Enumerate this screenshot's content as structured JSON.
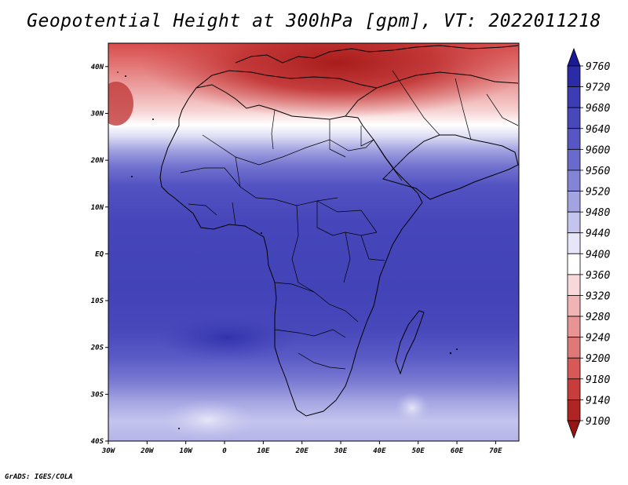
{
  "title": "Geopotential Height at 300hPa [gpm], VT: 2022011218",
  "credit": "GrADS: IGES/COLA",
  "map": {
    "lon_range": [
      -30,
      76
    ],
    "lat_range": [
      -40,
      45
    ],
    "lon_ticks": [
      {
        "value": -30,
        "label": "30W"
      },
      {
        "value": -20,
        "label": "20W"
      },
      {
        "value": -10,
        "label": "10W"
      },
      {
        "value": 0,
        "label": "0"
      },
      {
        "value": 10,
        "label": "10E"
      },
      {
        "value": 20,
        "label": "20E"
      },
      {
        "value": 30,
        "label": "30E"
      },
      {
        "value": 40,
        "label": "40E"
      },
      {
        "value": 50,
        "label": "50E"
      },
      {
        "value": 60,
        "label": "60E"
      },
      {
        "value": 70,
        "label": "70E"
      }
    ],
    "lat_ticks": [
      {
        "value": 40,
        "label": "40N"
      },
      {
        "value": 30,
        "label": "30N"
      },
      {
        "value": 20,
        "label": "20N"
      },
      {
        "value": 10,
        "label": "10N"
      },
      {
        "value": 0,
        "label": "EQ"
      },
      {
        "value": -10,
        "label": "10S"
      },
      {
        "value": -20,
        "label": "20S"
      },
      {
        "value": -30,
        "label": "30S"
      },
      {
        "value": -40,
        "label": "40S"
      }
    ]
  },
  "colorbar": {
    "levels": [
      9760,
      9720,
      9680,
      9640,
      9600,
      9560,
      9520,
      9480,
      9440,
      9400,
      9360,
      9320,
      9280,
      9240,
      9200,
      9180,
      9140,
      9100
    ],
    "colors": [
      "#1a1a96",
      "#2b2ba8",
      "#3c3cb4",
      "#4848bb",
      "#5757c4",
      "#6a6acc",
      "#8484d6",
      "#a3a3e2",
      "#c4c4ee",
      "#e6e6f8",
      "#ffffff",
      "#f8d8d8",
      "#f0b4b4",
      "#e89494",
      "#e07878",
      "#d85858",
      "#c83c3c",
      "#b02424",
      "#961414"
    ]
  }
}
